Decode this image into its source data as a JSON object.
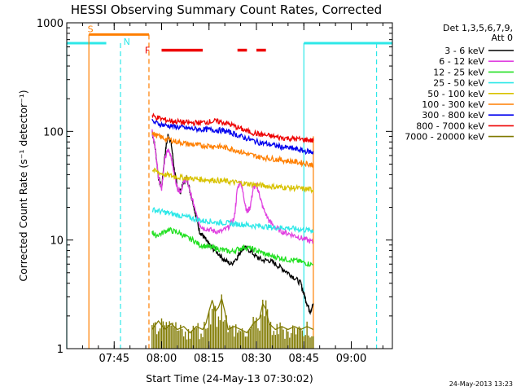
{
  "chart_data": {
    "type": "line",
    "title": "HESSI Observing Summary Count Rates, Corrected",
    "xlabel": "Start Time (24-May-13 07:30:02)",
    "ylabel": "Corrected Count Rate (s⁻¹ detector⁻¹)",
    "ylog": true,
    "ylim": [
      1,
      1000
    ],
    "xlim_minutes": [
      0,
      103
    ],
    "x_ticks": [
      {
        "label": "07:45",
        "t": 15
      },
      {
        "label": "08:00",
        "t": 30
      },
      {
        "label": "08:15",
        "t": 45
      },
      {
        "label": "08:30",
        "t": 60
      },
      {
        "label": "08:45",
        "t": 75
      },
      {
        "label": "09:00",
        "t": 90
      }
    ],
    "y_ticks": [
      {
        "label": "1",
        "v": 1
      },
      {
        "label": "10",
        "v": 10
      },
      {
        "label": "100",
        "v": 100
      },
      {
        "label": "1000",
        "v": 1000
      }
    ],
    "legend": {
      "header1": "Det 1,3,5,6,7,9,",
      "header2": "Att 0",
      "position": "right"
    },
    "series": [
      {
        "name": "3 - 6 keV",
        "color": "#000000",
        "points": [
          [
            27,
            100
          ],
          [
            28,
            70
          ],
          [
            29,
            38
          ],
          [
            30,
            30
          ],
          [
            31,
            60
          ],
          [
            32,
            92
          ],
          [
            33,
            80
          ],
          [
            34,
            45
          ],
          [
            35,
            30
          ],
          [
            36,
            28
          ],
          [
            37,
            34
          ],
          [
            38,
            38
          ],
          [
            39,
            28
          ],
          [
            40,
            22
          ],
          [
            41,
            16
          ],
          [
            42,
            12
          ],
          [
            43,
            11
          ],
          [
            44,
            10
          ],
          [
            45,
            9
          ],
          [
            46,
            8.5
          ],
          [
            48,
            7.5
          ],
          [
            50,
            6.5
          ],
          [
            52,
            6
          ],
          [
            54,
            7
          ],
          [
            55,
            8
          ],
          [
            56,
            8.5
          ],
          [
            58,
            8
          ],
          [
            60,
            7
          ],
          [
            62,
            6.5
          ],
          [
            64,
            6.5
          ],
          [
            66,
            6
          ],
          [
            68,
            5.5
          ],
          [
            70,
            5
          ],
          [
            72,
            4.5
          ],
          [
            74,
            4
          ],
          [
            75,
            3.2
          ],
          [
            76,
            2.6
          ],
          [
            77,
            2.2
          ],
          [
            78,
            2.6
          ]
        ]
      },
      {
        "name": "6 - 12 keV",
        "color": "#e040e0",
        "points": [
          [
            27,
            100
          ],
          [
            28,
            70
          ],
          [
            29,
            38
          ],
          [
            30,
            30
          ],
          [
            31,
            55
          ],
          [
            32,
            68
          ],
          [
            33,
            60
          ],
          [
            34,
            40
          ],
          [
            35,
            30
          ],
          [
            36,
            28
          ],
          [
            37,
            34
          ],
          [
            38,
            37
          ],
          [
            39,
            28
          ],
          [
            40,
            22
          ],
          [
            41,
            17
          ],
          [
            42,
            14
          ],
          [
            43,
            13
          ],
          [
            45,
            12.5
          ],
          [
            47,
            12
          ],
          [
            49,
            12
          ],
          [
            51,
            13
          ],
          [
            53,
            16
          ],
          [
            54,
            30
          ],
          [
            55,
            35
          ],
          [
            56,
            25
          ],
          [
            57,
            18
          ],
          [
            58,
            20
          ],
          [
            59,
            30
          ],
          [
            60,
            32
          ],
          [
            61,
            26
          ],
          [
            62,
            20
          ],
          [
            64,
            15
          ],
          [
            66,
            13
          ],
          [
            68,
            12
          ],
          [
            70,
            11.5
          ],
          [
            72,
            11
          ],
          [
            74,
            10.5
          ],
          [
            76,
            10
          ],
          [
            78,
            9.5
          ]
        ]
      },
      {
        "name": "12 - 25 keV",
        "color": "#22e022",
        "points": [
          [
            27,
            12
          ],
          [
            28,
            11
          ],
          [
            30,
            11.5
          ],
          [
            32,
            12.5
          ],
          [
            34,
            12
          ],
          [
            36,
            11.5
          ],
          [
            38,
            10.5
          ],
          [
            40,
            10
          ],
          [
            42,
            9
          ],
          [
            44,
            8.8
          ],
          [
            46,
            8.5
          ],
          [
            48,
            8.3
          ],
          [
            50,
            8
          ],
          [
            52,
            7.8
          ],
          [
            54,
            8.2
          ],
          [
            56,
            8.6
          ],
          [
            58,
            8.4
          ],
          [
            60,
            8
          ],
          [
            62,
            7.6
          ],
          [
            64,
            7.2
          ],
          [
            66,
            7
          ],
          [
            68,
            6.8
          ],
          [
            70,
            6.6
          ],
          [
            72,
            6.5
          ],
          [
            74,
            6.3
          ],
          [
            76,
            6.1
          ],
          [
            78,
            5.9
          ]
        ]
      },
      {
        "name": "25 - 50 keV",
        "color": "#2ee8e8",
        "points": [
          [
            27,
            19
          ],
          [
            29,
            18.5
          ],
          [
            31,
            18
          ],
          [
            33,
            17.5
          ],
          [
            35,
            17
          ],
          [
            37,
            16.5
          ],
          [
            39,
            16
          ],
          [
            41,
            15.5
          ],
          [
            43,
            15
          ],
          [
            45,
            15
          ],
          [
            47,
            14.5
          ],
          [
            49,
            14.5
          ],
          [
            51,
            14.3
          ],
          [
            53,
            14
          ],
          [
            55,
            14
          ],
          [
            57,
            13.8
          ],
          [
            59,
            13.5
          ],
          [
            61,
            13.5
          ],
          [
            63,
            13.3
          ],
          [
            65,
            13
          ],
          [
            67,
            13
          ],
          [
            69,
            13
          ],
          [
            71,
            12.8
          ],
          [
            73,
            12.6
          ],
          [
            75,
            12.4
          ],
          [
            77,
            12.3
          ],
          [
            78,
            12.2
          ]
        ]
      },
      {
        "name": "50 - 100 keV",
        "color": "#d8c200",
        "points": [
          [
            27,
            44
          ],
          [
            29,
            42
          ],
          [
            31,
            40
          ],
          [
            33,
            39
          ],
          [
            35,
            38
          ],
          [
            37,
            37.5
          ],
          [
            39,
            37
          ],
          [
            41,
            36.5
          ],
          [
            43,
            36
          ],
          [
            45,
            36
          ],
          [
            47,
            35.5
          ],
          [
            49,
            35
          ],
          [
            51,
            34.5
          ],
          [
            53,
            34
          ],
          [
            55,
            33.5
          ],
          [
            57,
            33
          ],
          [
            59,
            32.5
          ],
          [
            61,
            32
          ],
          [
            63,
            31.5
          ],
          [
            65,
            31
          ],
          [
            67,
            30.8
          ],
          [
            69,
            30.5
          ],
          [
            71,
            30.2
          ],
          [
            73,
            30
          ],
          [
            75,
            29.5
          ],
          [
            77,
            29.2
          ],
          [
            78,
            29
          ]
        ]
      },
      {
        "name": "100 - 300 keV",
        "color": "#ff7f00",
        "points": [
          [
            27,
            96
          ],
          [
            29,
            90
          ],
          [
            31,
            86
          ],
          [
            33,
            83
          ],
          [
            35,
            80
          ],
          [
            37,
            78
          ],
          [
            39,
            76
          ],
          [
            41,
            75
          ],
          [
            43,
            74
          ],
          [
            45,
            74
          ],
          [
            47,
            73
          ],
          [
            49,
            72
          ],
          [
            51,
            70
          ],
          [
            53,
            68
          ],
          [
            55,
            65
          ],
          [
            57,
            62
          ],
          [
            59,
            60
          ],
          [
            61,
            58
          ],
          [
            63,
            57
          ],
          [
            65,
            56
          ],
          [
            67,
            55
          ],
          [
            69,
            54
          ],
          [
            71,
            53
          ],
          [
            73,
            52
          ],
          [
            75,
            51
          ],
          [
            77,
            50
          ],
          [
            78,
            49
          ]
        ]
      },
      {
        "name": "300 - 800 keV",
        "color": "#0000ee",
        "points": [
          [
            27,
            123
          ],
          [
            29,
            118
          ],
          [
            31,
            114
          ],
          [
            33,
            112
          ],
          [
            35,
            110
          ],
          [
            37,
            108
          ],
          [
            39,
            106
          ],
          [
            41,
            105
          ],
          [
            43,
            104
          ],
          [
            45,
            104
          ],
          [
            47,
            103
          ],
          [
            49,
            102
          ],
          [
            51,
            99
          ],
          [
            53,
            95
          ],
          [
            55,
            90
          ],
          [
            57,
            86
          ],
          [
            59,
            82
          ],
          [
            61,
            79
          ],
          [
            63,
            77
          ],
          [
            65,
            75
          ],
          [
            67,
            73
          ],
          [
            69,
            71
          ],
          [
            71,
            70
          ],
          [
            73,
            68
          ],
          [
            75,
            66
          ],
          [
            77,
            65
          ],
          [
            78,
            64
          ]
        ]
      },
      {
        "name": "800 - 7000 keV",
        "color": "#ee0000",
        "points": [
          [
            27,
            139
          ],
          [
            29,
            133
          ],
          [
            31,
            128
          ],
          [
            33,
            125
          ],
          [
            35,
            123
          ],
          [
            37,
            121
          ],
          [
            39,
            120
          ],
          [
            41,
            120
          ],
          [
            43,
            121
          ],
          [
            45,
            123
          ],
          [
            47,
            124
          ],
          [
            49,
            122
          ],
          [
            51,
            118
          ],
          [
            53,
            112
          ],
          [
            55,
            106
          ],
          [
            57,
            101
          ],
          [
            59,
            97
          ],
          [
            61,
            94
          ],
          [
            63,
            92
          ],
          [
            65,
            90
          ],
          [
            67,
            88
          ],
          [
            69,
            87
          ],
          [
            71,
            86
          ],
          [
            73,
            85
          ],
          [
            75,
            84
          ],
          [
            77,
            83
          ],
          [
            78,
            82
          ]
        ]
      },
      {
        "name": "7000 - 20000 keV",
        "color": "#807a00",
        "points": [
          [
            27,
            1.5
          ],
          [
            29,
            1.8
          ],
          [
            31,
            1.5
          ],
          [
            33,
            1.7
          ],
          [
            35,
            1.5
          ],
          [
            37,
            1.6
          ],
          [
            39,
            1.4
          ],
          [
            41,
            1.6
          ],
          [
            43,
            1.5
          ],
          [
            44,
            1.7
          ],
          [
            45,
            2.2
          ],
          [
            46,
            2.8
          ],
          [
            47,
            2.2
          ],
          [
            48,
            2.4
          ],
          [
            49,
            2.9
          ],
          [
            50,
            2.2
          ],
          [
            51,
            1.5
          ],
          [
            53,
            1.6
          ],
          [
            55,
            1.5
          ],
          [
            57,
            1.4
          ],
          [
            59,
            1.7
          ],
          [
            61,
            1.9
          ],
          [
            62,
            2.6
          ],
          [
            63,
            2.3
          ],
          [
            64,
            1.7
          ],
          [
            66,
            1.5
          ],
          [
            68,
            1.6
          ],
          [
            70,
            1.5
          ],
          [
            72,
            1.6
          ],
          [
            74,
            1.5
          ],
          [
            76,
            1.6
          ],
          [
            78,
            1.5
          ]
        ]
      }
    ],
    "annotations": {
      "marker_s": "S",
      "marker_n": "N",
      "marker_f": "F",
      "cyan_line_level": 650,
      "orange_line_level": 780,
      "cyan_segments": [
        [
          0,
          12.5
        ],
        [
          75,
          103
        ]
      ],
      "orange_segment": [
        7,
        26
      ],
      "red_bar_level": 560,
      "red_bars": [
        [
          30,
          43
        ],
        [
          54,
          57
        ],
        [
          60,
          63
        ]
      ],
      "orange_vlines_solid": [
        7,
        78
      ],
      "orange_vlines_dashed": [
        26
      ],
      "cyan_vlines_solid": [
        0,
        75
      ],
      "cyan_vlines_dashed": [
        17,
        98
      ],
      "s_at": 7.5,
      "n_at": 19,
      "f_at": 25.5
    }
  },
  "footer": {
    "timestamp": "24-May-2013 13:23"
  }
}
